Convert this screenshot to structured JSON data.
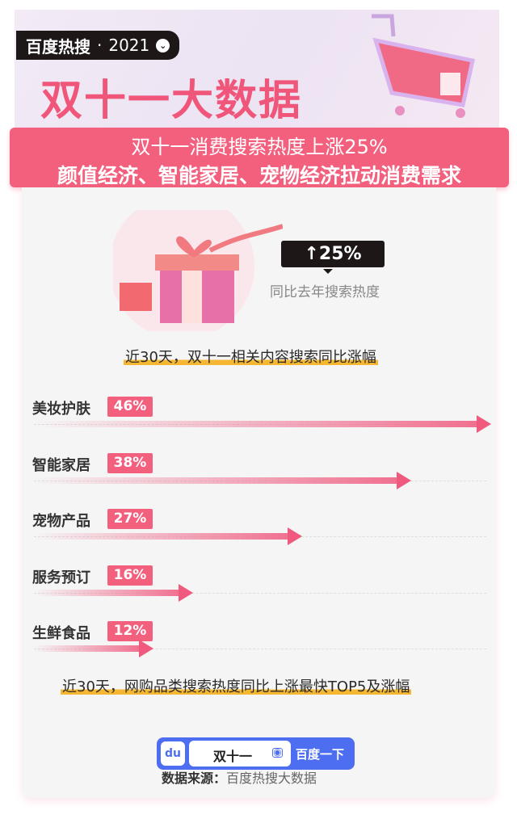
{
  "header": {
    "brand": "百度热搜",
    "year": "2021",
    "title": "双十一大数据",
    "subtitle_line1": "双十一消费搜索热度上涨25%",
    "subtitle_line2": "颜值经济、智能家居、宠物经济拉动消费需求"
  },
  "summary": {
    "badge": "↑25%",
    "caption": "同比去年搜索热度",
    "heading": "近30天，双十一相关内容搜索同比涨幅"
  },
  "chart_data": {
    "type": "bar",
    "orientation": "horizontal",
    "categories": [
      "美妆护肤",
      "智能家居",
      "宠物产品",
      "服务预订",
      "生鲜食品"
    ],
    "values": [
      46,
      38,
      27,
      16,
      12
    ],
    "labels": [
      "46%",
      "38%",
      "27%",
      "16%",
      "12%"
    ],
    "title": "近30天，网购品类搜索热度同比上涨最快TOP5及涨幅"
  },
  "colors": {
    "accent": "#f2607e",
    "dark": "#1e1718",
    "highlight": "#f5b731",
    "baidu": "#4e6ef2"
  },
  "search": {
    "query": "双十一",
    "button": "百度一下",
    "logo": "du"
  },
  "footer": {
    "source_label": "数据来源：",
    "source_value": "百度热搜大数据"
  }
}
